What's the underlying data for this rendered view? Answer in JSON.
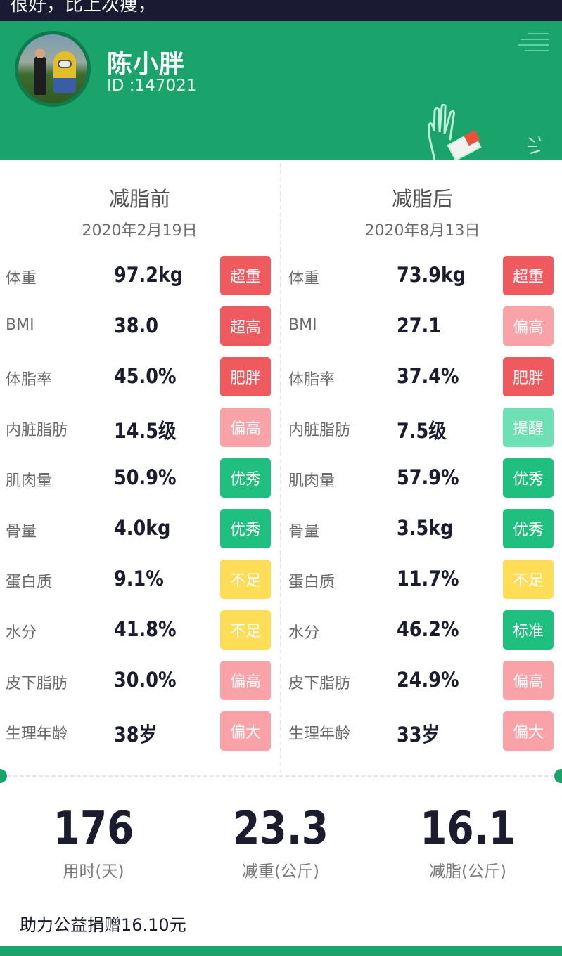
{
  "top_bar": {
    "text": "很好，比上次痩，"
  },
  "profile": {
    "name": "陈小胖",
    "id_text": "ID :147021",
    "avatar_icon": "avatar-photo"
  },
  "colors": {
    "brand_green": "#1aa36b",
    "red": "#ef5a5f",
    "pink": "#f9a3a8",
    "green": "#1fbf80",
    "mint": "#6ee0b6",
    "yellow": "#ffdd57"
  },
  "before": {
    "title": "减脂前",
    "date": "2020年2月19日",
    "rows": [
      {
        "label": "体重",
        "value": "97.2kg",
        "badge": "超重",
        "color": "#ef5a5f"
      },
      {
        "label": "BMI",
        "value": "38.0",
        "badge": "超高",
        "color": "#ef5a5f"
      },
      {
        "label": "体脂率",
        "value": "45.0%",
        "badge": "肥胖",
        "color": "#ef5a5f"
      },
      {
        "label": "内脏脂肪",
        "value": "14.5级",
        "badge": "偏高",
        "color": "#f9a3a8"
      },
      {
        "label": "肌肉量",
        "value": "50.9%",
        "badge": "优秀",
        "color": "#1fbf80"
      },
      {
        "label": "骨量",
        "value": "4.0kg",
        "badge": "优秀",
        "color": "#1fbf80"
      },
      {
        "label": "蛋白质",
        "value": "9.1%",
        "badge": "不足",
        "color": "#ffdd57"
      },
      {
        "label": "水分",
        "value": "41.8%",
        "badge": "不足",
        "color": "#ffdd57"
      },
      {
        "label": "皮下脂肪",
        "value": "30.0%",
        "badge": "偏高",
        "color": "#f9a3a8"
      },
      {
        "label": "生理年龄",
        "value": "38岁",
        "badge": "偏大",
        "color": "#f9a3a8"
      }
    ]
  },
  "after": {
    "title": "减脂后",
    "date": "2020年8月13日",
    "rows": [
      {
        "label": "体重",
        "value": "73.9kg",
        "badge": "超重",
        "color": "#ef5a5f"
      },
      {
        "label": "BMI",
        "value": "27.1",
        "badge": "偏高",
        "color": "#f9a3a8"
      },
      {
        "label": "体脂率",
        "value": "37.4%",
        "badge": "肥胖",
        "color": "#ef5a5f"
      },
      {
        "label": "内脏脂肪",
        "value": "7.5级",
        "badge": "提醒",
        "color": "#6ee0b6"
      },
      {
        "label": "肌肉量",
        "value": "57.9%",
        "badge": "优秀",
        "color": "#1fbf80"
      },
      {
        "label": "骨量",
        "value": "3.5kg",
        "badge": "优秀",
        "color": "#1fbf80"
      },
      {
        "label": "蛋白质",
        "value": "11.7%",
        "badge": "不足",
        "color": "#ffdd57"
      },
      {
        "label": "水分",
        "value": "46.2%",
        "badge": "标准",
        "color": "#1fbf80"
      },
      {
        "label": "皮下脂肪",
        "value": "24.9%",
        "badge": "偏高",
        "color": "#f9a3a8"
      },
      {
        "label": "生理年龄",
        "value": "33岁",
        "badge": "偏大",
        "color": "#f9a3a8"
      }
    ]
  },
  "stats": [
    {
      "value": "176",
      "label": "用时(天)"
    },
    {
      "value": "23.3",
      "label": "减重(公斤)"
    },
    {
      "value": "16.1",
      "label": "减脂(公斤)"
    }
  ],
  "donation": "助力公益捐赠16.10元"
}
